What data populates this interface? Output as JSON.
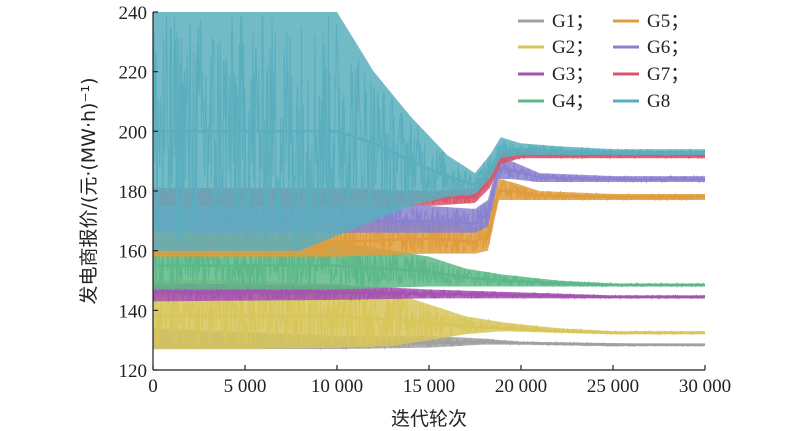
{
  "chart_data": {
    "type": "line",
    "title": "",
    "xlabel": "迭代轮次",
    "ylabel": "发电商报价/(元·(MW·h)⁻¹)",
    "xlim": [
      0,
      30000
    ],
    "ylim": [
      120,
      240
    ],
    "x_ticks": [
      0,
      5000,
      10000,
      15000,
      20000,
      25000,
      30000
    ],
    "x_tick_labels": [
      "0",
      "5 000",
      "10 000",
      "15 000",
      "20 000",
      "25 000",
      "30 000"
    ],
    "y_ticks": [
      120,
      140,
      160,
      180,
      200,
      220,
      240
    ],
    "y_tick_labels": [
      "120",
      "140",
      "160",
      "180",
      "200",
      "220",
      "240"
    ],
    "grid": false,
    "legend_position": "top-right",
    "series": [
      {
        "name": "G1；",
        "color": "#a0a0a0",
        "x": [
          0,
          10000,
          15000,
          18000,
          20000,
          25000,
          30000
        ],
        "center": [
          129,
          129,
          129,
          129.5,
          129,
          128.5,
          128.5
        ],
        "low": [
          127,
          127,
          127.5,
          128.5,
          128.5,
          128,
          128
        ],
        "high": [
          134,
          131.5,
          131.5,
          130.5,
          129.5,
          129,
          128.5
        ]
      },
      {
        "name": "G2；",
        "color": "#d8c65a",
        "x": [
          0,
          5000,
          10000,
          13000,
          15000,
          17000,
          19000,
          22000,
          25000,
          30000
        ],
        "center": [
          138,
          138,
          138,
          137,
          136,
          134.5,
          134,
          133,
          132.5,
          132.5
        ],
        "low": [
          127,
          127,
          127.5,
          128,
          130,
          132,
          133,
          132.5,
          132,
          132
        ],
        "high": [
          150,
          150,
          149,
          146,
          142,
          138,
          136,
          134,
          133,
          133
        ]
      },
      {
        "name": "G3；",
        "color": "#a453b0",
        "x": [
          0,
          10000,
          15000,
          20000,
          25000,
          30000
        ],
        "center": [
          146,
          146,
          145.5,
          145,
          144.5,
          144.5
        ],
        "low": [
          143,
          143.5,
          144,
          144,
          144,
          144
        ],
        "high": [
          149,
          148.5,
          147,
          146,
          145,
          145
        ]
      },
      {
        "name": "G4；",
        "color": "#5cb887",
        "x": [
          0,
          10000,
          15000,
          17000,
          19000,
          22000,
          25000,
          30000
        ],
        "center": [
          155,
          155,
          153,
          151,
          150,
          149,
          148.5,
          148.5
        ],
        "low": [
          147,
          147,
          148,
          148,
          148,
          148,
          148,
          148
        ],
        "high": [
          164,
          163,
          158,
          154,
          152,
          150,
          149,
          149
        ]
      },
      {
        "name": "G5；",
        "color": "#e09c3c",
        "x": [
          0,
          10000,
          15000,
          17500,
          18200,
          18800,
          19500,
          21000,
          25000,
          30000
        ],
        "center": [
          163,
          163,
          164,
          163,
          165,
          180,
          180,
          178.5,
          178,
          178
        ],
        "low": [
          158,
          158,
          159,
          159,
          160,
          177,
          177,
          177,
          177,
          177
        ],
        "high": [
          170,
          170,
          170,
          168,
          170,
          184,
          183,
          180,
          179,
          179
        ]
      },
      {
        "name": "G6；",
        "color": "#8a82cf",
        "x": [
          0,
          10000,
          15000,
          17500,
          18200,
          18800,
          19500,
          21000,
          25000,
          30000
        ],
        "center": [
          170,
          170,
          170,
          169,
          172,
          188,
          187,
          184.5,
          184,
          184
        ],
        "low": [
          166,
          166,
          166,
          166,
          168,
          184,
          184,
          183,
          183,
          183
        ],
        "high": [
          176,
          176,
          175,
          174,
          177,
          191,
          190,
          186,
          185,
          185
        ]
      },
      {
        "name": "G7；",
        "color": "#d9556a",
        "x": [
          0,
          10000,
          15000,
          17500,
          18300,
          18900,
          20000,
          22000,
          25000,
          30000
        ],
        "center": [
          178,
          178,
          178,
          178,
          184,
          191,
          192,
          192,
          192,
          192
        ],
        "low": [
          175,
          175,
          175,
          176,
          181,
          189,
          191,
          191,
          191,
          191
        ],
        "high": [
          181,
          181,
          180,
          181,
          188,
          194,
          193.5,
          193,
          193,
          193
        ]
      },
      {
        "name": "G8",
        "color": "#5aaebd",
        "x": [
          0,
          8000,
          10000,
          12000,
          14000,
          16000,
          17500,
          18300,
          18900,
          20000,
          22000,
          25000,
          30000
        ],
        "center": [
          200,
          200,
          200,
          196,
          190,
          185,
          182,
          187,
          194,
          194,
          193.5,
          193,
          193
        ],
        "low": [
          160,
          160,
          165,
          170,
          175,
          178,
          179,
          184,
          191,
          192,
          192,
          192,
          192
        ],
        "high": [
          240,
          240,
          240,
          220,
          205,
          192,
          186,
          192,
          198,
          196,
          195,
          194,
          194
        ]
      }
    ]
  }
}
